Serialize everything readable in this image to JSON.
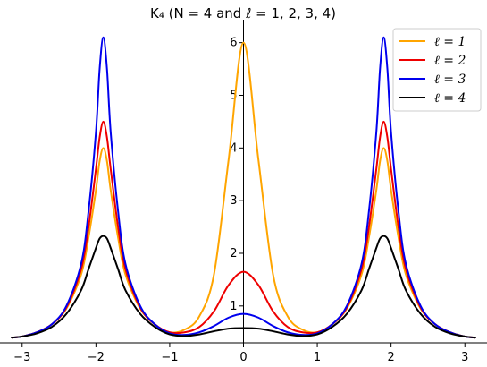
{
  "chart_data": {
    "type": "line",
    "title": "K₄ (N = 4 and ℓ = 1, 2, 3, 4)",
    "xlabel": "",
    "ylabel": "",
    "xlim": [
      -3.3,
      3.3
    ],
    "ylim": [
      0.3,
      6.3
    ],
    "x_ticks": [
      -3,
      -2,
      -1,
      0,
      1,
      2,
      3
    ],
    "x_tick_labels": [
      "−3",
      "−2",
      "−1",
      "0",
      "1",
      "2",
      "3"
    ],
    "y_ticks": [
      1,
      2,
      3,
      4,
      5,
      6
    ],
    "y_tick_labels": [
      "1",
      "2",
      "3",
      "4",
      "5",
      "6"
    ],
    "grid": false,
    "legend_position": "top-right",
    "x": [
      -3.14,
      -3.0,
      -2.8,
      -2.6,
      -2.4,
      -2.2,
      -2.1,
      -2.0,
      -1.95,
      -1.9,
      -1.85,
      -1.8,
      -1.7,
      -1.6,
      -1.4,
      -1.2,
      -1.0,
      -0.8,
      -0.6,
      -0.4,
      -0.2,
      0.0,
      0.2,
      0.4,
      0.6,
      0.8,
      1.0,
      1.2,
      1.4,
      1.6,
      1.7,
      1.8,
      1.85,
      1.9,
      1.95,
      2.0,
      2.1,
      2.2,
      2.4,
      2.6,
      2.8,
      3.0,
      3.14
    ],
    "series": [
      {
        "name": "ℓ = 1",
        "color": "#FFA500",
        "values": [
          0.4,
          0.42,
          0.5,
          0.65,
          0.95,
          1.6,
          2.3,
          3.2,
          3.75,
          4.0,
          3.75,
          3.2,
          2.3,
          1.6,
          0.95,
          0.65,
          0.5,
          0.55,
          0.8,
          1.6,
          3.8,
          6.0,
          3.8,
          1.6,
          0.8,
          0.55,
          0.5,
          0.65,
          0.95,
          1.6,
          2.3,
          3.2,
          3.75,
          4.0,
          3.75,
          3.2,
          2.3,
          1.6,
          0.95,
          0.65,
          0.5,
          0.42,
          0.4
        ]
      },
      {
        "name": "ℓ = 2",
        "color": "#EE0000",
        "values": [
          0.4,
          0.42,
          0.5,
          0.65,
          0.97,
          1.7,
          2.5,
          3.6,
          4.2,
          4.5,
          4.2,
          3.6,
          2.5,
          1.7,
          0.97,
          0.65,
          0.5,
          0.5,
          0.6,
          0.9,
          1.4,
          1.65,
          1.4,
          0.9,
          0.6,
          0.5,
          0.5,
          0.65,
          0.97,
          1.7,
          2.5,
          3.6,
          4.2,
          4.5,
          4.2,
          3.6,
          2.5,
          1.7,
          0.97,
          0.65,
          0.5,
          0.42,
          0.4
        ]
      },
      {
        "name": "ℓ = 3",
        "color": "#0000EE",
        "values": [
          0.4,
          0.42,
          0.5,
          0.65,
          1.0,
          1.8,
          2.8,
          4.3,
          5.5,
          6.1,
          5.5,
          4.3,
          2.8,
          1.8,
          1.0,
          0.65,
          0.48,
          0.45,
          0.5,
          0.62,
          0.78,
          0.85,
          0.78,
          0.62,
          0.5,
          0.45,
          0.48,
          0.65,
          1.0,
          1.8,
          2.8,
          4.3,
          5.5,
          6.1,
          5.5,
          4.3,
          2.8,
          1.8,
          1.0,
          0.65,
          0.5,
          0.42,
          0.4
        ]
      },
      {
        "name": "ℓ = 4",
        "color": "#000000",
        "values": [
          0.4,
          0.42,
          0.48,
          0.6,
          0.85,
          1.3,
          1.7,
          2.1,
          2.28,
          2.33,
          2.28,
          2.1,
          1.7,
          1.3,
          0.85,
          0.6,
          0.46,
          0.43,
          0.46,
          0.52,
          0.57,
          0.58,
          0.57,
          0.52,
          0.46,
          0.43,
          0.46,
          0.6,
          0.85,
          1.3,
          1.7,
          2.1,
          2.28,
          2.33,
          2.28,
          2.1,
          1.7,
          1.3,
          0.85,
          0.6,
          0.48,
          0.42,
          0.4
        ]
      }
    ]
  }
}
